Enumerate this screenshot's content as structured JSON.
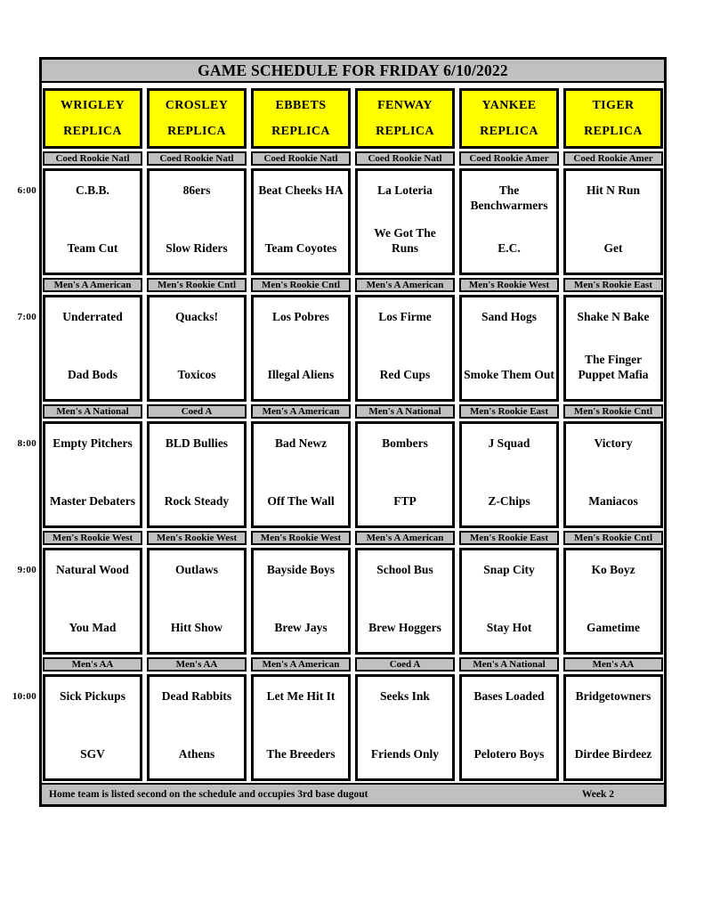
{
  "title": "GAME SCHEDULE FOR FRIDAY 6/10/2022",
  "columns": [
    {
      "name": "WRIGLEY",
      "suffix": "REPLICA"
    },
    {
      "name": "CROSLEY",
      "suffix": "REPLICA"
    },
    {
      "name": "EBBETS",
      "suffix": "REPLICA"
    },
    {
      "name": "FENWAY",
      "suffix": "REPLICA"
    },
    {
      "name": "YANKEE",
      "suffix": "REPLICA"
    },
    {
      "name": "TIGER",
      "suffix": "REPLICA"
    }
  ],
  "slots": [
    {
      "time": "6:00",
      "games": [
        {
          "division": "Coed Rookie Natl",
          "away": "C.B.B.",
          "home": "Team Cut"
        },
        {
          "division": "Coed Rookie Natl",
          "away": "86ers",
          "home": "Slow Riders"
        },
        {
          "division": "Coed Rookie Natl",
          "away": "Beat Cheeks HA",
          "home": "Team Coyotes"
        },
        {
          "division": "Coed Rookie Natl",
          "away": "La Loteria",
          "home": "We Got The Runs"
        },
        {
          "division": "Coed Rookie Amer",
          "away": "The Benchwarmers",
          "home": "E.C."
        },
        {
          "division": "Coed Rookie Amer",
          "away": "Hit N Run",
          "home": "Get"
        }
      ]
    },
    {
      "time": "7:00",
      "games": [
        {
          "division": "Men's A American",
          "away": "Underrated",
          "home": "Dad Bods"
        },
        {
          "division": "Men's Rookie Cntl",
          "away": "Quacks!",
          "home": "Toxicos"
        },
        {
          "division": "Men's Rookie Cntl",
          "away": "Los Pobres",
          "home": "Illegal Aliens"
        },
        {
          "division": "Men's A American",
          "away": "Los Firme",
          "home": "Red Cups"
        },
        {
          "division": "Men's Rookie West",
          "away": "Sand Hogs",
          "home": "Smoke Them Out"
        },
        {
          "division": "Men's Rookie East",
          "away": "Shake N Bake",
          "home": "The Finger Puppet Mafia"
        }
      ]
    },
    {
      "time": "8:00",
      "games": [
        {
          "division": "Men's A National",
          "away": "Empty Pitchers",
          "home": "Master Debaters"
        },
        {
          "division": "Coed A",
          "away": "BLD Bullies",
          "home": "Rock Steady"
        },
        {
          "division": "Men's A American",
          "away": "Bad Newz",
          "home": "Off The Wall"
        },
        {
          "division": "Men's A National",
          "away": "Bombers",
          "home": "FTP"
        },
        {
          "division": "Men's Rookie East",
          "away": "J Squad",
          "home": "Z-Chips"
        },
        {
          "division": "Men's Rookie Cntl",
          "away": "Victory",
          "home": "Maniacos"
        }
      ]
    },
    {
      "time": "9:00",
      "games": [
        {
          "division": "Men's Rookie West",
          "away": "Natural Wood",
          "home": "You Mad"
        },
        {
          "division": "Men's Rookie West",
          "away": "Outlaws",
          "home": "Hitt Show"
        },
        {
          "division": "Men's Rookie West",
          "away": "Bayside Boys",
          "home": "Brew Jays"
        },
        {
          "division": "Men's A American",
          "away": "School Bus",
          "home": "Brew Hoggers"
        },
        {
          "division": "Men's Rookie East",
          "away": "Snap City",
          "home": "Stay Hot"
        },
        {
          "division": "Men's Rookie Cntl",
          "away": "Ko Boyz",
          "home": "Gametime"
        }
      ]
    },
    {
      "time": "10:00",
      "games": [
        {
          "division": "Men's AA",
          "away": "Sick Pickups",
          "home": "SGV"
        },
        {
          "division": "Men's AA",
          "away": "Dead Rabbits",
          "home": "Athens"
        },
        {
          "division": "Men's A American",
          "away": "Let Me Hit It",
          "home": "The Breeders"
        },
        {
          "division": "Coed A",
          "away": "Seeks Ink",
          "home": "Friends Only"
        },
        {
          "division": "Men's A National",
          "away": "Bases Loaded",
          "home": "Pelotero Boys"
        },
        {
          "division": "Men's AA",
          "away": "Bridgetowners",
          "home": "Dirdee Birdeez"
        }
      ]
    }
  ],
  "footer": {
    "note": "Home team is listed second on the schedule and occupies 3rd base dugout",
    "week": "Week 2"
  },
  "colors": {
    "venue_header_bg": "#ffff00",
    "bar_bg": "#c0c0c0",
    "border": "#000000"
  }
}
